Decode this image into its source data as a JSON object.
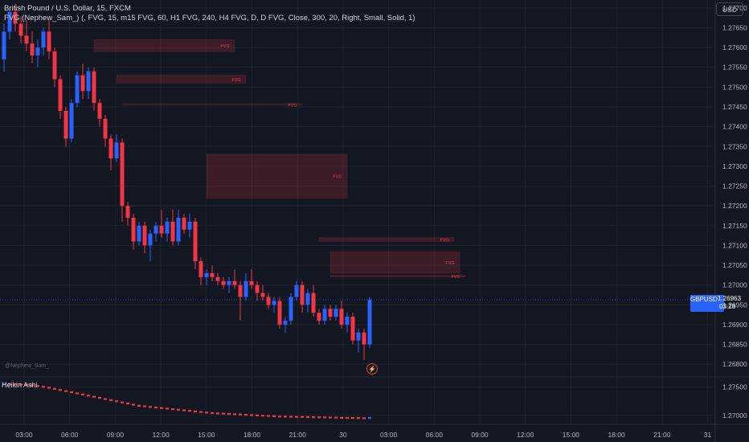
{
  "header": {
    "title": "British Pound / U.S. Dollar, 15, FXCM",
    "indicator": "FVG (Nephew_Sam_) (, FVG, 15, m15 FVG, 60, H1 FVG, 240, H4 FVG, D, D FVG, Close, 300, 20, Right, Small, Solid, 1)"
  },
  "currency_button": "USD",
  "watermark": "@Nephew_Sam_",
  "subpane_label": "Heikin Ashi",
  "price_tag": {
    "symbol": "GBPUSD",
    "price": "1.26963",
    "countdown": "03:28"
  },
  "fvg_label": "FVG",
  "colors": {
    "bg": "#131722",
    "up": "#2962ff",
    "down": "#f23645",
    "fvg": "#f23645",
    "grid": "#1e222d",
    "axis_text": "#b2b5be"
  },
  "icons": {
    "alert": "lightning-icon"
  },
  "chart_data": {
    "type": "candlestick",
    "y_ticks": [
      "1.27700",
      "1.27650",
      "1.27600",
      "1.27550",
      "1.27500",
      "1.27450",
      "1.27400",
      "1.27350",
      "1.27300",
      "1.27250",
      "1.27200",
      "1.27150",
      "1.27100",
      "1.27050",
      "1.27000",
      "1.26950",
      "1.26900",
      "1.26850",
      "1.26800"
    ],
    "sub_y_ticks": [
      "1.27500",
      "1.27000"
    ],
    "x_ticks": [
      "03:00",
      "06:00",
      "09:00",
      "12:00",
      "15:00",
      "18:00",
      "21:00",
      "30",
      "03:00",
      "06:00",
      "09:00",
      "12:00",
      "15:00",
      "18:00",
      "21:00",
      "31"
    ],
    "ylim": [
      1.2677,
      1.2772
    ],
    "last_price": 1.26963,
    "candles": [
      [
        1.2757,
        1.2766,
        1.2754,
        1.2764
      ],
      [
        1.2764,
        1.277,
        1.2762,
        1.2769
      ],
      [
        1.2769,
        1.2771,
        1.2764,
        1.2766
      ],
      [
        1.2766,
        1.2768,
        1.2761,
        1.2763
      ],
      [
        1.2763,
        1.2767,
        1.2759,
        1.2761
      ],
      [
        1.2761,
        1.2764,
        1.2756,
        1.2758
      ],
      [
        1.2758,
        1.2762,
        1.2755,
        1.276
      ],
      [
        1.276,
        1.2765,
        1.2758,
        1.2764
      ],
      [
        1.2764,
        1.2767,
        1.2757,
        1.2759
      ],
      [
        1.2759,
        1.276,
        1.275,
        1.2752
      ],
      [
        1.2752,
        1.2753,
        1.2742,
        1.2744
      ],
      [
        1.2744,
        1.2745,
        1.2735,
        1.2737
      ],
      [
        1.2737,
        1.2747,
        1.2736,
        1.2746
      ],
      [
        1.2746,
        1.2754,
        1.2745,
        1.2753
      ],
      [
        1.2753,
        1.2756,
        1.2747,
        1.2749
      ],
      [
        1.2749,
        1.2755,
        1.2747,
        1.2754
      ],
      [
        1.2754,
        1.2755,
        1.2744,
        1.2746
      ],
      [
        1.2746,
        1.2747,
        1.274,
        1.2742
      ],
      [
        1.2742,
        1.2743,
        1.2735,
        1.2737
      ],
      [
        1.2737,
        1.2738,
        1.2729,
        1.2732
      ],
      [
        1.2732,
        1.2738,
        1.2731,
        1.2736
      ],
      [
        1.2736,
        1.2737,
        1.2716,
        1.272
      ],
      [
        1.272,
        1.2721,
        1.2715,
        1.2717
      ],
      [
        1.2717,
        1.2718,
        1.2709,
        1.2711
      ],
      [
        1.2711,
        1.2716,
        1.271,
        1.2715
      ],
      [
        1.2715,
        1.2716,
        1.2708,
        1.271
      ],
      [
        1.271,
        1.2714,
        1.2706,
        1.2713
      ],
      [
        1.2713,
        1.2716,
        1.2711,
        1.2715
      ],
      [
        1.2715,
        1.2719,
        1.2712,
        1.2713
      ],
      [
        1.2713,
        1.2717,
        1.2711,
        1.2716
      ],
      [
        1.2716,
        1.2719,
        1.271,
        1.2711
      ],
      [
        1.2711,
        1.2719,
        1.271,
        1.2717
      ],
      [
        1.2717,
        1.2718,
        1.2713,
        1.2714
      ],
      [
        1.2714,
        1.2718,
        1.2712,
        1.2716
      ],
      [
        1.2716,
        1.2717,
        1.2704,
        1.2706
      ],
      [
        1.2706,
        1.2707,
        1.27,
        1.2702
      ],
      [
        1.2702,
        1.2704,
        1.27,
        1.2703
      ],
      [
        1.2703,
        1.2705,
        1.2701,
        1.2702
      ],
      [
        1.2702,
        1.2703,
        1.27,
        1.2701
      ],
      [
        1.2701,
        1.2702,
        1.2699,
        1.27
      ],
      [
        1.27,
        1.2702,
        1.2698,
        1.2701
      ],
      [
        1.2701,
        1.2704,
        1.2699,
        1.27
      ],
      [
        1.27,
        1.2701,
        1.2691,
        1.2697
      ],
      [
        1.2697,
        1.2703,
        1.2696,
        1.2701
      ],
      [
        1.2701,
        1.2704,
        1.2699,
        1.27
      ],
      [
        1.27,
        1.2701,
        1.2696,
        1.2698
      ],
      [
        1.2698,
        1.27,
        1.2696,
        1.2697
      ],
      [
        1.2697,
        1.2698,
        1.2694,
        1.2695
      ],
      [
        1.2695,
        1.2697,
        1.2693,
        1.2696
      ],
      [
        1.2696,
        1.2697,
        1.2689,
        1.269
      ],
      [
        1.269,
        1.2692,
        1.2688,
        1.2691
      ],
      [
        1.2691,
        1.2698,
        1.269,
        1.2697
      ],
      [
        1.2697,
        1.2701,
        1.2696,
        1.27
      ],
      [
        1.27,
        1.2701,
        1.2693,
        1.2695
      ],
      [
        1.2695,
        1.2699,
        1.2693,
        1.2698
      ],
      [
        1.2698,
        1.27,
        1.2692,
        1.2693
      ],
      [
        1.2693,
        1.2694,
        1.269,
        1.2691
      ],
      [
        1.2691,
        1.2695,
        1.269,
        1.2694
      ],
      [
        1.2694,
        1.2695,
        1.2691,
        1.2692
      ],
      [
        1.2692,
        1.2695,
        1.2691,
        1.2694
      ],
      [
        1.2694,
        1.2696,
        1.2689,
        1.269
      ],
      [
        1.269,
        1.2693,
        1.2688,
        1.2692
      ],
      [
        1.2692,
        1.2693,
        1.2685,
        1.2686
      ],
      [
        1.2686,
        1.2689,
        1.2683,
        1.2688
      ],
      [
        1.2688,
        1.2689,
        1.2681,
        1.2685
      ],
      [
        1.2685,
        1.2697,
        1.2684,
        1.26963
      ]
    ],
    "ha_values": [
      1.2756,
      1.27555,
      1.2755,
      1.27545,
      1.2754,
      1.2753,
      1.2752,
      1.27505,
      1.2749,
      1.2747,
      1.2745,
      1.2743,
      1.2741,
      1.2739,
      1.2737,
      1.2735,
      1.2733,
      1.2731,
      1.2729,
      1.2727,
      1.2725,
      1.2723,
      1.2721,
      1.2719,
      1.2717,
      1.2716,
      1.2715,
      1.2714,
      1.2713,
      1.2712,
      1.2711,
      1.271,
      1.2709,
      1.2708,
      1.2707,
      1.2706,
      1.2705,
      1.2704,
      1.27035,
      1.2703,
      1.27025,
      1.2702,
      1.27015,
      1.2701,
      1.27005,
      1.27,
      1.26995,
      1.2699,
      1.26985,
      1.2698,
      1.26978,
      1.26976,
      1.26974,
      1.26972,
      1.2697,
      1.26968,
      1.26966,
      1.26964,
      1.26962,
      1.2696,
      1.26958,
      1.26956,
      1.26954,
      1.26952,
      1.2695,
      1.26955
    ],
    "sub_ylim": [
      1.2684,
      1.2768
    ],
    "fvg_zones": [
      {
        "c0": 16,
        "c1": 41,
        "top": 1.2762,
        "bottom": 1.2759
      },
      {
        "c0": 20,
        "c1": 43,
        "top": 1.2753,
        "bottom": 1.2751
      },
      {
        "c0": 21,
        "c1": 53,
        "top": 1.27458,
        "bottom": 1.27455
      },
      {
        "c0": 36,
        "c1": 61,
        "top": 1.2733,
        "bottom": 1.2722
      },
      {
        "c0": 56,
        "c1": 80,
        "top": 1.2712,
        "bottom": 1.2711
      },
      {
        "c0": 58,
        "c1": 81,
        "top": 1.27085,
        "bottom": 1.2703
      },
      {
        "c0": 58,
        "c1": 82,
        "top": 1.27025,
        "bottom": 1.2702
      }
    ]
  }
}
